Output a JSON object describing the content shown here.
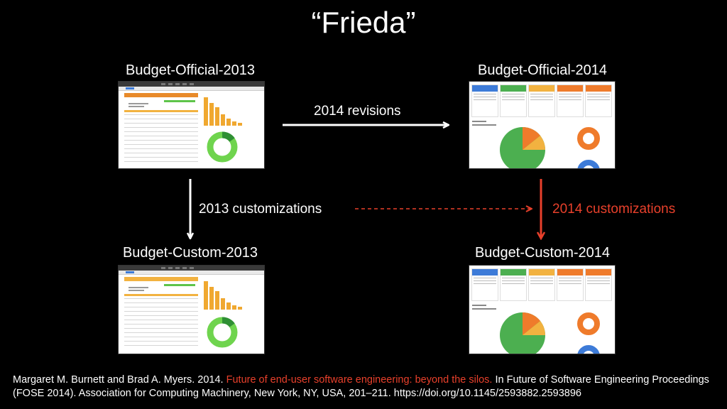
{
  "title": "“Frieda”",
  "nodes": {
    "official_2013": "Budget-Official-2013",
    "official_2014": "Budget-Official-2014",
    "custom_2013": "Budget-Custom-2013",
    "custom_2014": "Budget-Custom-2014"
  },
  "edges": {
    "revisions": "2014 revisions",
    "custom_2013": "2013 customizations",
    "custom_2014": "2014 customizations"
  },
  "colors": {
    "background": "#000000",
    "text": "#ffffff",
    "accent_red": "#e8402b"
  },
  "citation": {
    "authors": "Margaret M. Burnett and Brad A. Myers. 2014.",
    "paper_title": "Future of end-user software engineering: beyond the silos.",
    "venue": "In Future of Software Engineering Proceedings (FOSE 2014). Association for Computing Machinery, New York, NY, USA, 201–211. https://doi.org/10.1145/2593882.2593896"
  }
}
